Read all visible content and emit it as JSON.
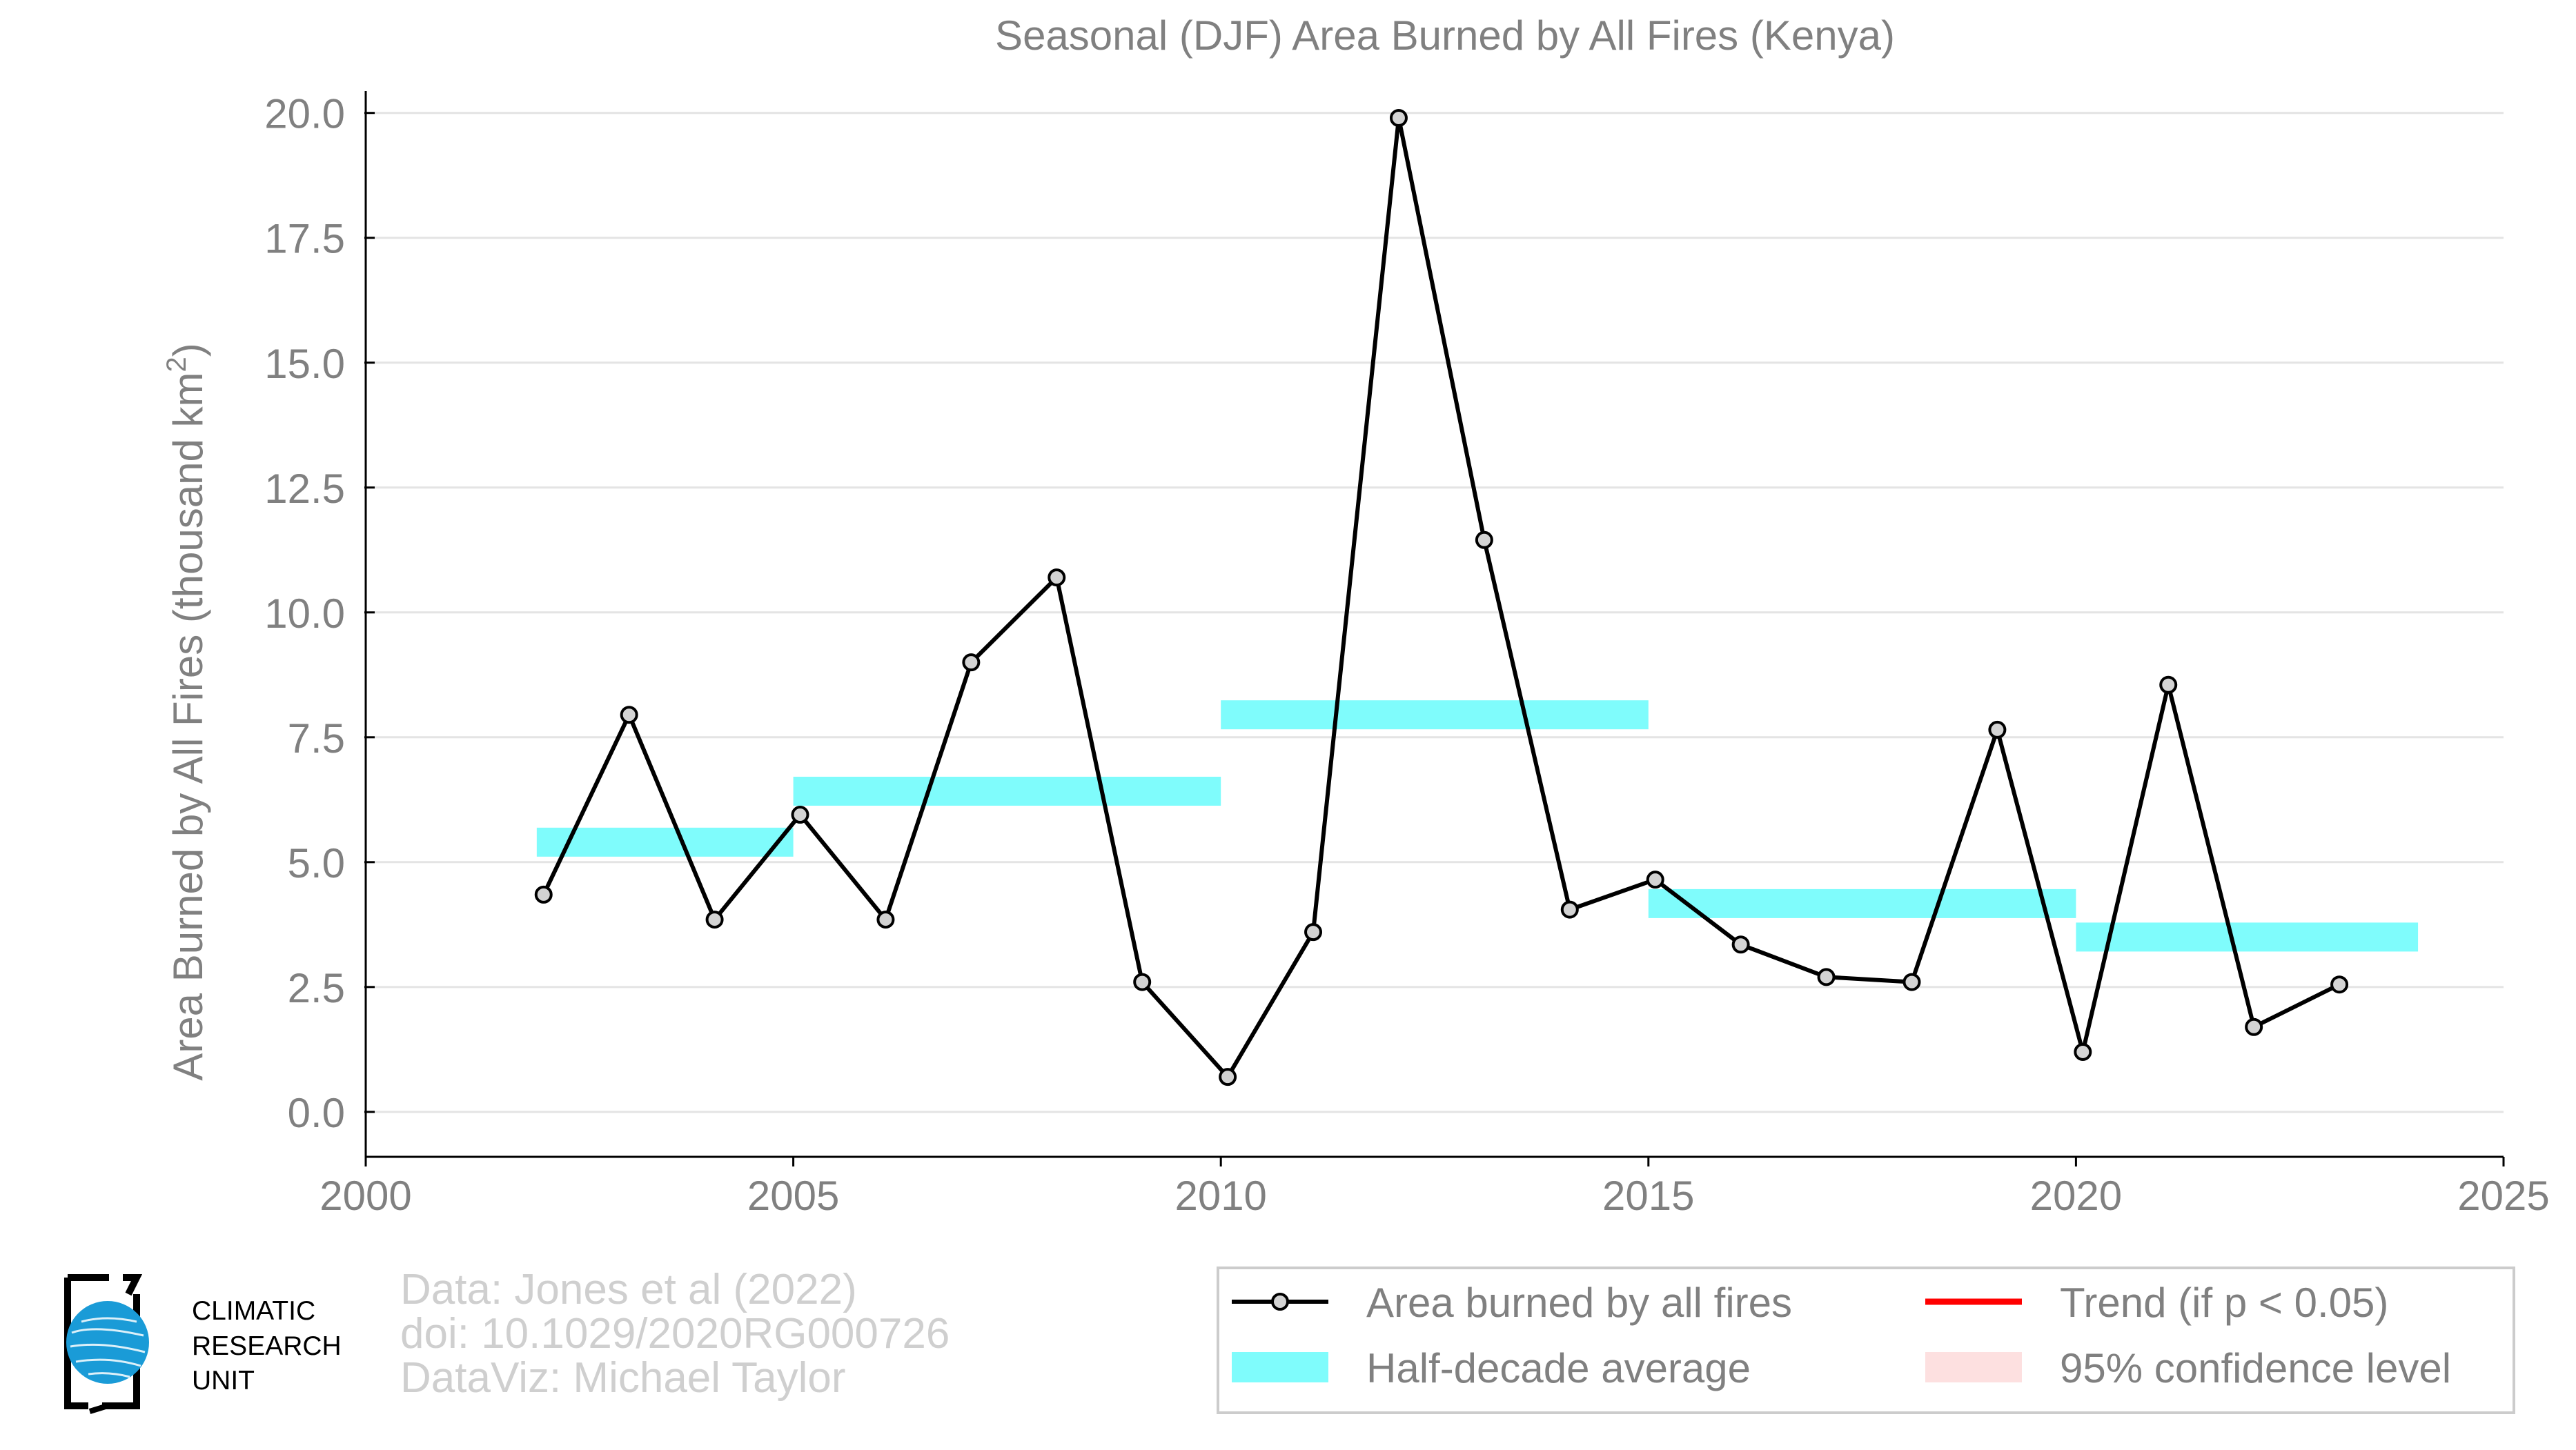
{
  "chart_data": {
    "type": "line",
    "title": "Seasonal (DJF) Area Burned by All Fires (Kenya)",
    "xlabel": "",
    "ylabel": "Area Burned by All Fires (thousand km",
    "ylabel_superscript": "2",
    "ylabel_suffix": ")",
    "xlim": [
      2000,
      2025
    ],
    "ylim": [
      -0.9,
      20.3
    ],
    "xticks": [
      2000,
      2005,
      2010,
      2015,
      2020,
      2025
    ],
    "yticks": [
      0.0,
      2.5,
      5.0,
      7.5,
      10.0,
      12.5,
      15.0,
      17.5,
      20.0
    ],
    "ytick_labels": [
      "0.0",
      "2.5",
      "5.0",
      "7.5",
      "10.0",
      "12.5",
      "15.0",
      "17.5",
      "20.0"
    ],
    "grid": "horizontal",
    "series": [
      {
        "name": "Area burned by all fires",
        "color": "#000000",
        "marker_fill": "#d3d3d3",
        "x": [
          2002.08,
          2003.08,
          2004.08,
          2005.08,
          2006.08,
          2007.08,
          2008.08,
          2009.08,
          2010.08,
          2011.08,
          2012.08,
          2013.08,
          2014.08,
          2015.08,
          2016.08,
          2017.08,
          2018.08,
          2019.08,
          2020.08,
          2021.08,
          2022.08,
          2023.08
        ],
        "values": [
          4.35,
          7.95,
          3.85,
          5.95,
          3.85,
          9.0,
          10.7,
          2.6,
          0.7,
          3.6,
          19.9,
          11.45,
          4.05,
          4.65,
          3.35,
          2.7,
          2.6,
          7.65,
          1.2,
          8.55,
          1.7,
          2.55
        ]
      }
    ],
    "half_decade_average": {
      "name": "Half-decade average",
      "color": "#7ffcfc",
      "segments": [
        {
          "x0": 2002,
          "x1": 2005,
          "value": 5.4
        },
        {
          "x0": 2005,
          "x1": 2010,
          "value": 6.42
        },
        {
          "x0": 2010,
          "x1": 2015,
          "value": 7.95
        },
        {
          "x0": 2015,
          "x1": 2020,
          "value": 4.17
        },
        {
          "x0": 2020,
          "x1": 2024,
          "value": 3.5
        }
      ]
    },
    "legend": {
      "placement": "bottom-right",
      "entries": [
        {
          "label": "Area burned by all fires",
          "kind": "line-marker",
          "color": "#000000"
        },
        {
          "label": "Trend (if p < 0.05)",
          "kind": "line",
          "color": "#ff0000"
        },
        {
          "label": "Half-decade average",
          "kind": "patch",
          "color": "#7ffcfc"
        },
        {
          "label": "95% confidence level",
          "kind": "patch",
          "color": "#fde0e0"
        }
      ]
    }
  },
  "credits": {
    "line1": "Data: Jones et al (2022)",
    "line2": "doi: 10.1029/2020RG000726",
    "line3": "DataViz: Michael Taylor"
  },
  "logo": {
    "line1": "CLIMATIC",
    "line2": "RESEARCH",
    "line3": "UNIT",
    "globe_color": "#1a9bd7"
  },
  "colors": {
    "axis_text": "#808080",
    "grid": "#e4e4e4",
    "credits_text": "#cfcfcf"
  }
}
